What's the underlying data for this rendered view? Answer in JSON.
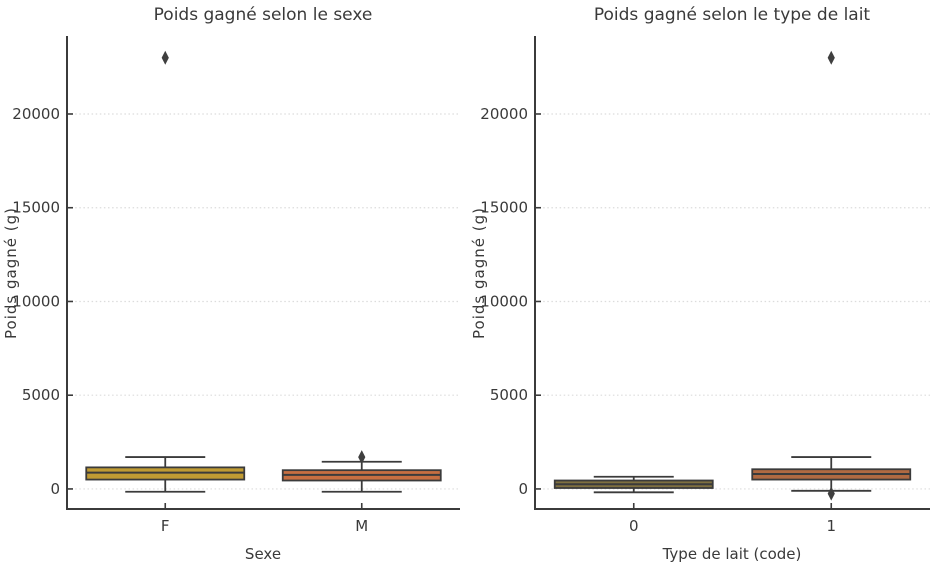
{
  "figure": {
    "background": "#ffffff",
    "text_color": "#3a3a3a",
    "spine_color": "#3b3b3b",
    "grid_color": "#dcdcdc",
    "box_edge_color": "#3b3b3b",
    "outlier_color": "#3f3f3f"
  },
  "chart_data": [
    {
      "type": "box",
      "title": "Poids gagné selon le sexe",
      "xlabel": "Sexe",
      "ylabel": "Poids gagné (g)",
      "categories": [
        "F",
        "M"
      ],
      "yticks": [
        0,
        5000,
        10000,
        15000,
        20000
      ],
      "ytick_labels": [
        "0",
        "5000",
        "10000",
        "15000",
        "20000"
      ],
      "ylim": [
        -1070,
        24160
      ],
      "grid": "horizontal-dotted",
      "legend": "none",
      "boxes": [
        {
          "category": "F",
          "whisker_low": -150,
          "q1": 500,
          "median": 870,
          "q3": 1150,
          "whisker_high": 1700,
          "outliers": [
            23000
          ],
          "fill": "#c09b33"
        },
        {
          "category": "M",
          "whisker_low": -150,
          "q1": 450,
          "median": 750,
          "q3": 1000,
          "whisker_high": 1450,
          "outliers": [
            1700
          ],
          "fill": "#c76f41"
        }
      ]
    },
    {
      "type": "box",
      "title": "Poids gagné selon le type de lait",
      "xlabel": "Type de lait (code)",
      "ylabel": "Poids gagné (g)",
      "categories": [
        "0",
        "1"
      ],
      "yticks": [
        0,
        5000,
        10000,
        15000,
        20000
      ],
      "ytick_labels": [
        "0",
        "5000",
        "10000",
        "15000",
        "20000"
      ],
      "ylim": [
        -1070,
        24160
      ],
      "grid": "horizontal-dotted",
      "legend": "none",
      "boxes": [
        {
          "category": "0",
          "whisker_low": -180,
          "q1": 50,
          "median": 250,
          "q3": 450,
          "whisker_high": 650,
          "outliers": [],
          "fill": "#7f7040"
        },
        {
          "category": "1",
          "whisker_low": -100,
          "q1": 500,
          "median": 800,
          "q3": 1050,
          "whisker_high": 1700,
          "outliers": [
            -250,
            23000
          ],
          "fill": "#b06a42"
        }
      ]
    }
  ]
}
